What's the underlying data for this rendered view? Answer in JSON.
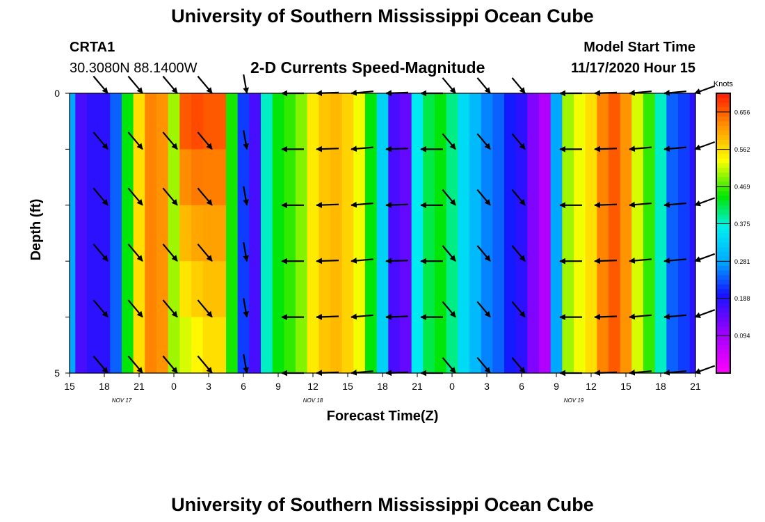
{
  "header": {
    "title_top": "University of Southern Mississippi Ocean Cube",
    "title_bottom": "University of Southern Mississippi Ocean Cube",
    "station_id": "CRTA1",
    "station_coords": "30.3080N 88.1400W",
    "chart_title": "2-D Currents Speed-Magnitude",
    "model_label": "Model Start Time",
    "model_time": "11/17/2020 Hour 15"
  },
  "chart_data": {
    "type": "heatmap",
    "title": "2-D Currents Speed-Magnitude",
    "xlabel": "Forecast Time(Z)",
    "ylabel": "Depth (ft)",
    "ylim": [
      0,
      5
    ],
    "y_ticks": [
      "0",
      "5"
    ],
    "x_hours": [
      0,
      54
    ],
    "x_ticks": [
      "15",
      "18",
      "21",
      "0",
      "3",
      "6",
      "9",
      "12",
      "15",
      "18",
      "21",
      "0",
      "3",
      "6",
      "9",
      "12",
      "15",
      "18",
      "21"
    ],
    "date_labels": [
      {
        "text": "NOV 17",
        "hour": 4.5
      },
      {
        "text": "NOV 18",
        "hour": 21
      },
      {
        "text": "NOV 19",
        "hour": 43.5
      }
    ],
    "colorbar": {
      "unit": "Knots",
      "range": [
        0.0,
        0.703
      ],
      "ticks": [
        "0.656",
        "0.562",
        "0.469",
        "0.375",
        "0.281",
        "0.188",
        "0.094"
      ],
      "tick_values": [
        0.656,
        0.562,
        0.469,
        0.375,
        0.281,
        0.188,
        0.094
      ]
    },
    "speed_by_hour": [
      0.28,
      0.16,
      0.18,
      0.18,
      0.24,
      0.44,
      0.56,
      0.63,
      0.62,
      0.5,
      0.56,
      0.66,
      0.67,
      0.58,
      0.45,
      0.22,
      0.16,
      0.38,
      0.44,
      0.46,
      0.49,
      0.55,
      0.58,
      0.59,
      0.57,
      0.53,
      0.44,
      0.33,
      0.16,
      0.14,
      0.36,
      0.42,
      0.44,
      0.4,
      0.34,
      0.3,
      0.26,
      0.24,
      0.2,
      0.18,
      0.12,
      0.08,
      0.28,
      0.5,
      0.53,
      0.56,
      0.63,
      0.66,
      0.62,
      0.52,
      0.46,
      0.38,
      0.24,
      0.22,
      0.18
    ],
    "depth_gradient_hours": [
      {
        "hour": 10.5,
        "top": 0.66,
        "bottom": 0.52
      },
      {
        "hour": 11.5,
        "top": 0.67,
        "bottom": 0.54
      },
      {
        "hour": 12.5,
        "top": 0.66,
        "bottom": 0.56
      }
    ],
    "vectors": {
      "hours": [
        3.3,
        6.3,
        9.3,
        12.3,
        15.3,
        18.3,
        21.3,
        24.3,
        27.3,
        30.3,
        33.3,
        36.3,
        39.3,
        42.3,
        45.3,
        48.3,
        51.3,
        54.0
      ],
      "depths": [
        0,
        1,
        2,
        3,
        4,
        5
      ],
      "direction_deg": [
        140,
        140,
        140,
        140,
        170,
        270,
        268,
        265,
        268,
        270,
        140,
        140,
        140,
        270,
        268,
        265,
        265,
        250
      ],
      "speed": [
        0.6,
        0.6,
        0.6,
        0.6,
        0.45,
        0.6,
        0.6,
        0.6,
        0.6,
        0.6,
        0.5,
        0.5,
        0.5,
        0.6,
        0.6,
        0.6,
        0.6,
        0.55
      ]
    }
  }
}
